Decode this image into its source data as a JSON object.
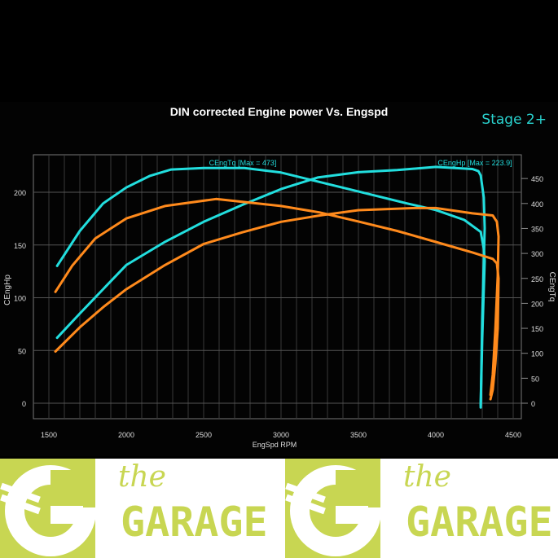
{
  "chart_data": {
    "type": "line",
    "title": "DIN corrected Engine power Vs. Engspd",
    "badge": "Stage 2+",
    "xlabel": "EngSpd RPM",
    "ylabel_left": "CEngHp",
    "ylabel_right": "CEngTq",
    "xlim": [
      1400,
      4550
    ],
    "ylim_left": [
      -15,
      250
    ],
    "ylim_right": [
      -30,
      490
    ],
    "x_ticks": [
      "1500",
      "2000",
      "2500",
      "3000",
      "3500",
      "4000",
      "4500"
    ],
    "y_left_ticks": [
      "0",
      "50",
      "100",
      "150",
      "200"
    ],
    "y_right_ticks": [
      "0",
      "50",
      "100",
      "150",
      "200",
      "250",
      "300",
      "350",
      "400",
      "450"
    ],
    "grid": true,
    "legend_labels": {
      "torque": "CEngTq [Max = 473]",
      "power": "CEngHp [Max = 223.9]"
    },
    "colors": {
      "tuned": "#22dede",
      "stock": "#ff8a1c",
      "background": "#000000"
    },
    "series": [
      {
        "key": "tuned_hp",
        "axis": "left",
        "color": "#22dede",
        "x": [
          1553,
          1700,
          1850,
          2000,
          2250,
          2500,
          2750,
          3000,
          3237,
          3500,
          3750,
          4000,
          4237,
          4275,
          4290,
          4310,
          4316,
          4300,
          4290
        ],
        "y": [
          62,
          85,
          108,
          131,
          153,
          172,
          188,
          203,
          214,
          219,
          221,
          224,
          222,
          220,
          216,
          195,
          166,
          80,
          -4
        ]
      },
      {
        "key": "tuned_tq",
        "axis": "right",
        "color": "#22dede",
        "x": [
          1553,
          1700,
          1850,
          2000,
          2150,
          2290,
          2500,
          2763,
          3000,
          3290,
          3500,
          3816,
          4000,
          4184,
          4290,
          4310,
          4316,
          4300,
          4290
        ],
        "y": [
          275,
          345,
          400,
          432,
          455,
          468,
          471,
          471,
          462,
          440,
          424,
          400,
          387,
          367,
          343,
          310,
          285,
          130,
          -4
        ]
      },
      {
        "key": "stock_hp",
        "axis": "left",
        "color": "#ff8a1c",
        "x": [
          1542,
          1700,
          1850,
          2000,
          2250,
          2500,
          2750,
          3000,
          3250,
          3500,
          3868,
          4000,
          4237,
          4368,
          4395,
          4405,
          4400,
          4385,
          4368,
          4353
        ],
        "y": [
          49,
          72,
          91,
          108,
          131,
          151,
          162,
          172,
          178,
          183,
          185,
          185,
          180,
          178,
          172,
          158,
          120,
          70,
          27,
          8
        ]
      },
      {
        "key": "stock_tq",
        "axis": "right",
        "color": "#ff8a1c",
        "x": [
          1542,
          1650,
          1800,
          2000,
          2250,
          2580,
          3000,
          3250,
          3500,
          3750,
          4000,
          4237,
          4368,
          4395,
          4405,
          4400,
          4385,
          4368,
          4353
        ],
        "y": [
          223,
          275,
          330,
          370,
          395,
          409,
          395,
          382,
          364,
          345,
          323,
          302,
          289,
          280,
          250,
          150,
          80,
          27,
          8
        ]
      }
    ]
  },
  "logo": {
    "word_small": "the",
    "word_large": "GARAGE",
    "letter": "G"
  }
}
